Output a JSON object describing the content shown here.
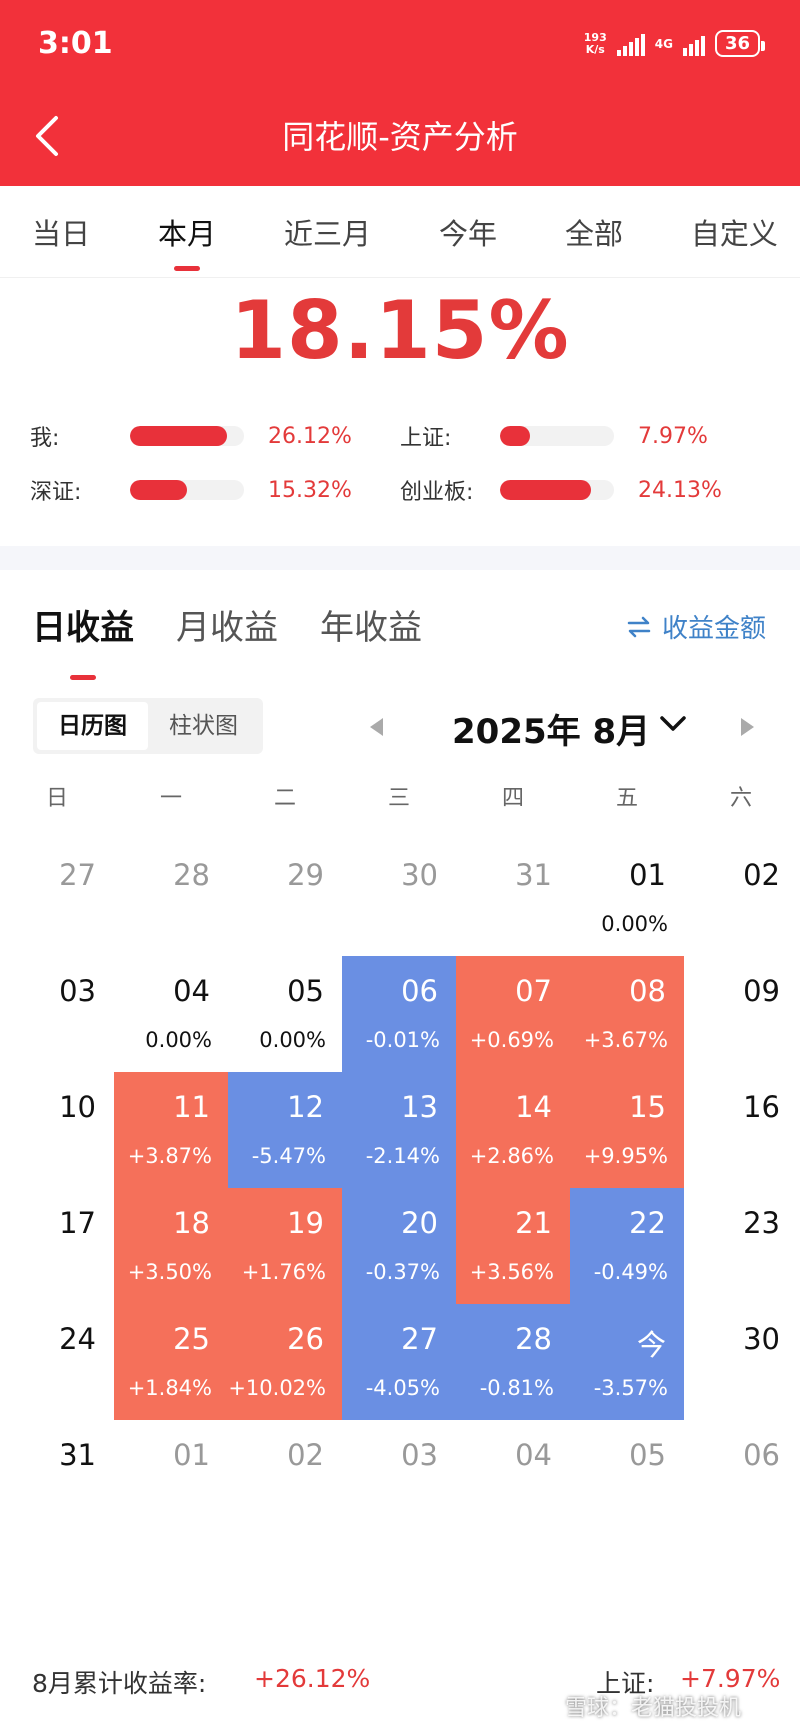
{
  "status_bar": {
    "time": "3:01",
    "net_speed": "193",
    "net_speed_unit": "K/s",
    "network": "4G",
    "battery": "36"
  },
  "app_title": "同花顺-资产分析",
  "period_tabs": [
    "当日",
    "本月",
    "近三月",
    "今年",
    "全部",
    "自定义"
  ],
  "active_period": "本月",
  "summary": {
    "total_return": "18.15%",
    "comparisons": [
      {
        "label": "我:",
        "value": "26.12%",
        "level": 0.85
      },
      {
        "label": "上证:",
        "value": "7.97%",
        "level": 0.26
      },
      {
        "label": "深证:",
        "value": "15.32%",
        "level": 0.5
      },
      {
        "label": "创业板:",
        "value": "24.13%",
        "level": 0.8
      }
    ]
  },
  "sub_tabs": [
    "日收益",
    "月收益",
    "年收益"
  ],
  "amount_toggle": "收益金额",
  "view_toggle": [
    "日历图",
    "柱状图"
  ],
  "month_label": "2025年 8月",
  "weekdays": [
    "日",
    "一",
    "二",
    "三",
    "四",
    "五",
    "六"
  ],
  "calendar_rows": [
    [
      {
        "day": "27",
        "ret": "",
        "state": "other"
      },
      {
        "day": "28",
        "ret": "",
        "state": "other"
      },
      {
        "day": "29",
        "ret": "",
        "state": "other"
      },
      {
        "day": "30",
        "ret": "",
        "state": "other"
      },
      {
        "day": "31",
        "ret": "",
        "state": "other"
      },
      {
        "day": "01",
        "ret": "0.00%",
        "state": "flat"
      },
      {
        "day": "02",
        "ret": "",
        "state": "none"
      }
    ],
    [
      {
        "day": "03",
        "ret": "",
        "state": "none"
      },
      {
        "day": "04",
        "ret": "0.00%",
        "state": "flat"
      },
      {
        "day": "05",
        "ret": "0.00%",
        "state": "flat"
      },
      {
        "day": "06",
        "ret": "-0.01%",
        "state": "down"
      },
      {
        "day": "07",
        "ret": "+0.69%",
        "state": "up"
      },
      {
        "day": "08",
        "ret": "+3.67%",
        "state": "up"
      },
      {
        "day": "09",
        "ret": "",
        "state": "none"
      }
    ],
    [
      {
        "day": "10",
        "ret": "",
        "state": "none"
      },
      {
        "day": "11",
        "ret": "+3.87%",
        "state": "up"
      },
      {
        "day": "12",
        "ret": "-5.47%",
        "state": "down"
      },
      {
        "day": "13",
        "ret": "-2.14%",
        "state": "down"
      },
      {
        "day": "14",
        "ret": "+2.86%",
        "state": "up"
      },
      {
        "day": "15",
        "ret": "+9.95%",
        "state": "up"
      },
      {
        "day": "16",
        "ret": "",
        "state": "none"
      }
    ],
    [
      {
        "day": "17",
        "ret": "",
        "state": "none"
      },
      {
        "day": "18",
        "ret": "+3.50%",
        "state": "up"
      },
      {
        "day": "19",
        "ret": "+1.76%",
        "state": "up"
      },
      {
        "day": "20",
        "ret": "-0.37%",
        "state": "down"
      },
      {
        "day": "21",
        "ret": "+3.56%",
        "state": "up"
      },
      {
        "day": "22",
        "ret": "-0.49%",
        "state": "down"
      },
      {
        "day": "23",
        "ret": "",
        "state": "none"
      }
    ],
    [
      {
        "day": "24",
        "ret": "",
        "state": "none"
      },
      {
        "day": "25",
        "ret": "+1.84%",
        "state": "up"
      },
      {
        "day": "26",
        "ret": "+10.02%",
        "state": "up"
      },
      {
        "day": "27",
        "ret": "-4.05%",
        "state": "down"
      },
      {
        "day": "28",
        "ret": "-0.81%",
        "state": "down"
      },
      {
        "day": "今",
        "ret": "-3.57%",
        "state": "down"
      },
      {
        "day": "30",
        "ret": "",
        "state": "none"
      }
    ],
    [
      {
        "day": "31",
        "ret": "",
        "state": "none"
      },
      {
        "day": "01",
        "ret": "",
        "state": "other"
      },
      {
        "day": "02",
        "ret": "",
        "state": "other"
      },
      {
        "day": "03",
        "ret": "",
        "state": "other"
      },
      {
        "day": "04",
        "ret": "",
        "state": "other"
      },
      {
        "day": "05",
        "ret": "",
        "state": "other"
      },
      {
        "day": "06",
        "ret": "",
        "state": "other"
      }
    ]
  ],
  "footer": {
    "cum_label": "8月累计收益率:",
    "cum_value": "+26.12%",
    "index_label": "上证:",
    "index_value": "+7.97%"
  },
  "watermark": "雪球：老猫投投机",
  "colors": {
    "brand_red": "#f2313a",
    "up": "#f5705a",
    "down": "#6a8fe3",
    "link_blue": "#3f82c8"
  }
}
